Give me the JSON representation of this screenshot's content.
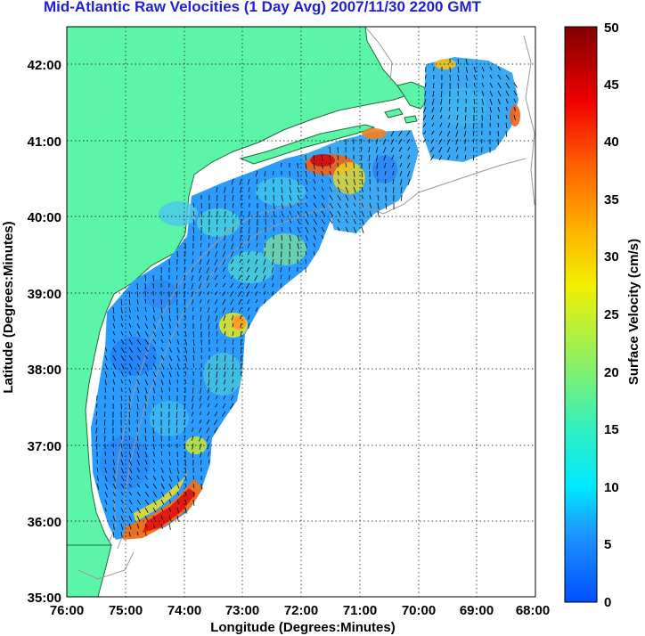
{
  "title": "Mid-Atlantic Raw Velocities (1 Day Avg) 2007/11/30 2200 GMT",
  "map": {
    "x_axis_label": "Longitude (Degrees:Minutes)",
    "y_axis_label": "Latitude (Degrees:Minutes)",
    "x_ticks": [
      "76:00",
      "75:00",
      "74:00",
      "73:00",
      "72:00",
      "71:00",
      "70:00",
      "69:00",
      "68:00"
    ],
    "y_ticks": [
      "42:00",
      "41:00",
      "40:00",
      "39:00",
      "38:00",
      "37:00",
      "36:00",
      "35:00"
    ],
    "lon_range": [
      -76,
      -68
    ],
    "lat_range": [
      35,
      42.5
    ],
    "land_color": "#5cf5a8",
    "ocean_color": "#ffffff",
    "gridlines": "dotted"
  },
  "colorbar": {
    "label": "Surface Velocity (cm/s)",
    "ticks": [
      "0",
      "5",
      "10",
      "15",
      "20",
      "25",
      "30",
      "35",
      "40",
      "45",
      "50"
    ],
    "range": [
      0,
      50
    ],
    "colormap": "jet"
  }
}
